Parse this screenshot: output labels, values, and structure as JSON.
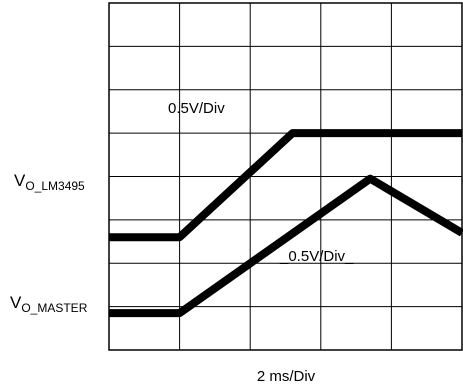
{
  "chart_data": {
    "type": "line",
    "title": "",
    "xlabel": "2 ms/Div",
    "ylabel": "",
    "divisions": {
      "x": 5,
      "y": 8
    },
    "grid": true,
    "colors": {
      "trace": "#000000",
      "grid": "#000000",
      "background": "#ffffff"
    },
    "series": [
      {
        "name": "VO_LM3495",
        "label_main": "V",
        "label_sub": "O_LM3495",
        "scale_label": "0.5V/Div",
        "x": [
          0,
          1.0,
          2.6,
          5.0
        ],
        "y": [
          2.6,
          2.6,
          5.0,
          5.0
        ]
      },
      {
        "name": "VO_MASTER",
        "label_main": "V",
        "label_sub": "O_MASTER",
        "scale_label": "_0.5V/Div_",
        "x": [
          0,
          1.0,
          3.7,
          5.0
        ],
        "y": [
          0.85,
          0.85,
          3.95,
          2.7
        ]
      }
    ]
  }
}
